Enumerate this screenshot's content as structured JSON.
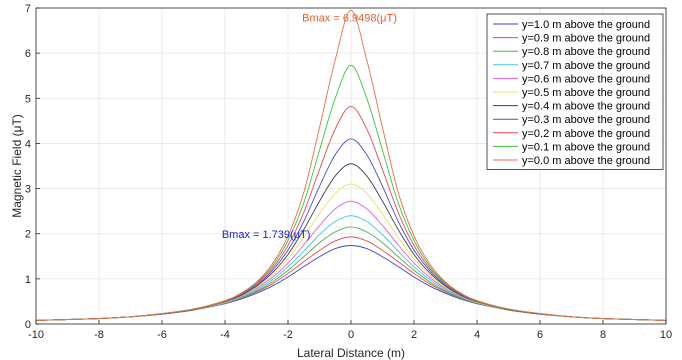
{
  "chart_data": {
    "type": "line",
    "xlabel": "Lateral Distance (m)",
    "ylabel": "Magnetic Field (μT)",
    "xlim": [
      -10,
      10
    ],
    "ylim": [
      0,
      7
    ],
    "xticks": [
      -10,
      -8,
      -6,
      -4,
      -2,
      0,
      2,
      4,
      6,
      8,
      10
    ],
    "yticks": [
      0,
      1,
      2,
      3,
      4,
      5,
      6,
      7
    ],
    "grid": true,
    "legend_position": "top-right",
    "x": [
      -10,
      -9,
      -8,
      -7,
      -6,
      -5,
      -4,
      -3.5,
      -3,
      -2.5,
      -2,
      -1.5,
      -1,
      -0.5,
      0,
      0.5,
      1,
      1.5,
      2,
      2.5,
      3,
      3.5,
      4,
      5,
      6,
      7,
      8,
      9,
      10
    ],
    "series": [
      {
        "name": "y=1.0 m above the ground",
        "color": "#4040c8",
        "peak": 1.739,
        "values": [
          0.08,
          0.1,
          0.12,
          0.16,
          0.22,
          0.31,
          0.45,
          0.55,
          0.68,
          0.84,
          1.04,
          1.27,
          1.49,
          1.67,
          1.739,
          1.67,
          1.49,
          1.27,
          1.04,
          0.84,
          0.68,
          0.55,
          0.45,
          0.31,
          0.22,
          0.16,
          0.12,
          0.1,
          0.08
        ]
      },
      {
        "name": "y=0.9 m above the ground",
        "color": "#e05050",
        "peak": 1.93,
        "values": [
          0.08,
          0.1,
          0.12,
          0.16,
          0.22,
          0.31,
          0.46,
          0.57,
          0.71,
          0.89,
          1.12,
          1.38,
          1.63,
          1.84,
          1.93,
          1.84,
          1.63,
          1.38,
          1.12,
          0.89,
          0.71,
          0.57,
          0.46,
          0.31,
          0.22,
          0.16,
          0.12,
          0.1,
          0.08
        ]
      },
      {
        "name": "y=0.8 m above the ground",
        "color": "#4caf50",
        "peak": 2.15,
        "values": [
          0.08,
          0.1,
          0.12,
          0.16,
          0.22,
          0.31,
          0.46,
          0.58,
          0.73,
          0.93,
          1.19,
          1.49,
          1.8,
          2.04,
          2.15,
          2.04,
          1.8,
          1.49,
          1.19,
          0.93,
          0.73,
          0.58,
          0.46,
          0.31,
          0.22,
          0.16,
          0.12,
          0.1,
          0.08
        ]
      },
      {
        "name": "y=0.7 m above the ground",
        "color": "#40c8e0",
        "peak": 2.4,
        "values": [
          0.08,
          0.1,
          0.12,
          0.16,
          0.22,
          0.32,
          0.47,
          0.59,
          0.76,
          0.98,
          1.27,
          1.61,
          1.98,
          2.27,
          2.4,
          2.27,
          1.98,
          1.61,
          1.27,
          0.98,
          0.76,
          0.59,
          0.47,
          0.32,
          0.22,
          0.16,
          0.12,
          0.1,
          0.08
        ]
      },
      {
        "name": "y=0.6 m above the ground",
        "color": "#e060e0",
        "peak": 2.72,
        "values": [
          0.08,
          0.1,
          0.12,
          0.16,
          0.22,
          0.32,
          0.48,
          0.61,
          0.79,
          1.03,
          1.35,
          1.75,
          2.18,
          2.55,
          2.72,
          2.55,
          2.18,
          1.75,
          1.35,
          1.03,
          0.79,
          0.61,
          0.48,
          0.32,
          0.22,
          0.16,
          0.12,
          0.1,
          0.08
        ]
      },
      {
        "name": "y=0.5 m above the ground",
        "color": "#e8e060",
        "peak": 3.1,
        "values": [
          0.08,
          0.1,
          0.12,
          0.16,
          0.22,
          0.32,
          0.48,
          0.62,
          0.81,
          1.08,
          1.45,
          1.92,
          2.44,
          2.89,
          3.1,
          2.89,
          2.44,
          1.92,
          1.45,
          1.08,
          0.81,
          0.62,
          0.48,
          0.32,
          0.22,
          0.16,
          0.12,
          0.1,
          0.08
        ]
      },
      {
        "name": "y=0.4 m above the ground",
        "color": "#404058",
        "peak": 3.55,
        "values": [
          0.08,
          0.1,
          0.12,
          0.16,
          0.22,
          0.32,
          0.49,
          0.63,
          0.84,
          1.13,
          1.54,
          2.09,
          2.72,
          3.28,
          3.55,
          3.28,
          2.72,
          2.09,
          1.54,
          1.13,
          0.84,
          0.63,
          0.49,
          0.32,
          0.22,
          0.16,
          0.12,
          0.1,
          0.08
        ]
      },
      {
        "name": "y=0.3 m above the ground",
        "color": "#4848d0",
        "peak": 4.1,
        "values": [
          0.08,
          0.1,
          0.12,
          0.16,
          0.22,
          0.33,
          0.5,
          0.65,
          0.86,
          1.18,
          1.64,
          2.27,
          3.05,
          3.75,
          4.1,
          3.75,
          3.05,
          2.27,
          1.64,
          1.18,
          0.86,
          0.65,
          0.5,
          0.33,
          0.22,
          0.16,
          0.12,
          0.1,
          0.08
        ]
      },
      {
        "name": "y=0.2 m above the ground",
        "color": "#e04848",
        "peak": 4.82,
        "values": [
          0.08,
          0.1,
          0.12,
          0.16,
          0.23,
          0.33,
          0.5,
          0.66,
          0.89,
          1.23,
          1.74,
          2.47,
          3.42,
          4.32,
          4.82,
          4.32,
          3.42,
          2.47,
          1.74,
          1.23,
          0.89,
          0.66,
          0.5,
          0.33,
          0.23,
          0.16,
          0.12,
          0.1,
          0.08
        ]
      },
      {
        "name": "y=0.1 m above the ground",
        "color": "#40c040",
        "peak": 5.73,
        "values": [
          0.08,
          0.1,
          0.12,
          0.16,
          0.23,
          0.33,
          0.51,
          0.67,
          0.91,
          1.28,
          1.85,
          2.68,
          3.85,
          5.0,
          5.73,
          5.0,
          3.85,
          2.68,
          1.85,
          1.28,
          0.91,
          0.67,
          0.51,
          0.33,
          0.23,
          0.16,
          0.12,
          0.1,
          0.08
        ]
      },
      {
        "name": "y=0.0 m above the ground",
        "color": "#e07050",
        "peak": 6.9498,
        "values": [
          0.08,
          0.1,
          0.12,
          0.16,
          0.23,
          0.33,
          0.52,
          0.68,
          0.93,
          1.33,
          1.95,
          2.91,
          4.35,
          5.85,
          6.9498,
          5.85,
          4.35,
          2.91,
          1.95,
          1.33,
          0.93,
          0.68,
          0.52,
          0.33,
          0.23,
          0.16,
          0.12,
          0.1,
          0.08
        ]
      }
    ],
    "annotations": [
      {
        "text": "Bmax = 6.9498(μT)",
        "color": "#e06030",
        "x": -1.55,
        "y": 6.7
      },
      {
        "text": "Bmax = 1.739(μT)",
        "color": "#2020d0",
        "x": -4.1,
        "y": 1.9
      }
    ]
  }
}
